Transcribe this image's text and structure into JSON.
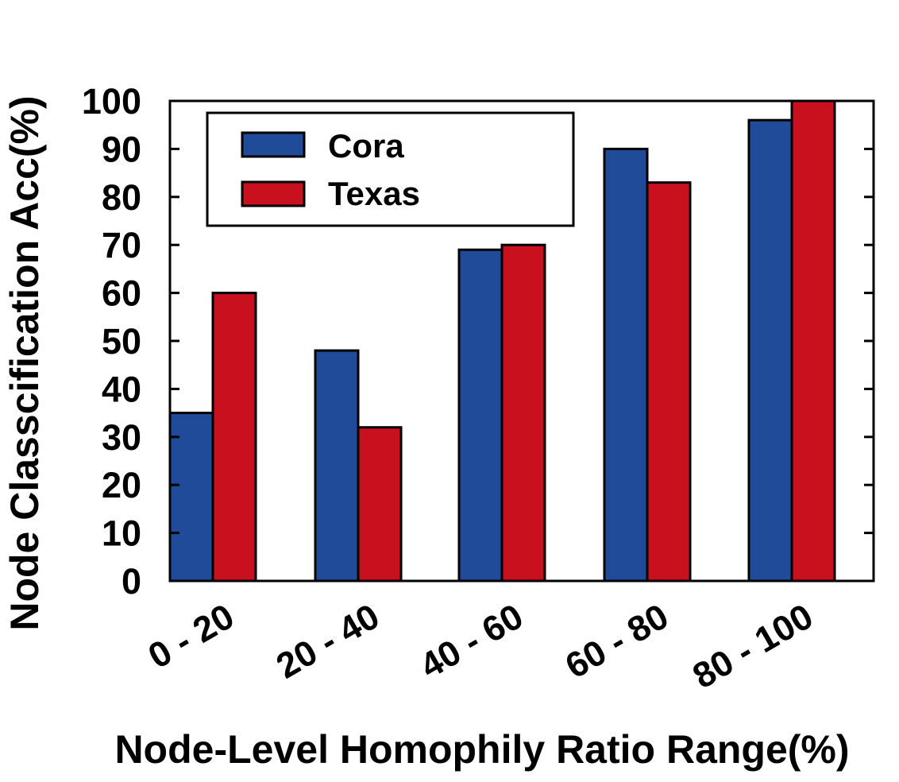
{
  "chart_data": {
    "type": "bar",
    "title": "",
    "xlabel": "Node-Level Homophily Ratio Range(%)",
    "ylabel": "Node Classcification  Acc(%)",
    "ylim": [
      0,
      100
    ],
    "yticks": [
      "0",
      "10",
      "20",
      "30",
      "40",
      "50",
      "60",
      "70",
      "80",
      "90",
      "100"
    ],
    "categories": [
      "0 - 20",
      "20 - 40",
      "40 - 60",
      "60 - 80",
      "80 - 100"
    ],
    "series": [
      {
        "name": "Cora",
        "color": "#1f4b99",
        "values": [
          35,
          48,
          69,
          90,
          96
        ]
      },
      {
        "name": "Texas",
        "color": "#c8101e",
        "values": [
          60,
          32,
          70,
          83,
          100
        ]
      }
    ],
    "legend": {
      "position": "top-left",
      "entries": [
        "Cora",
        "Texas"
      ]
    },
    "grid": false
  }
}
